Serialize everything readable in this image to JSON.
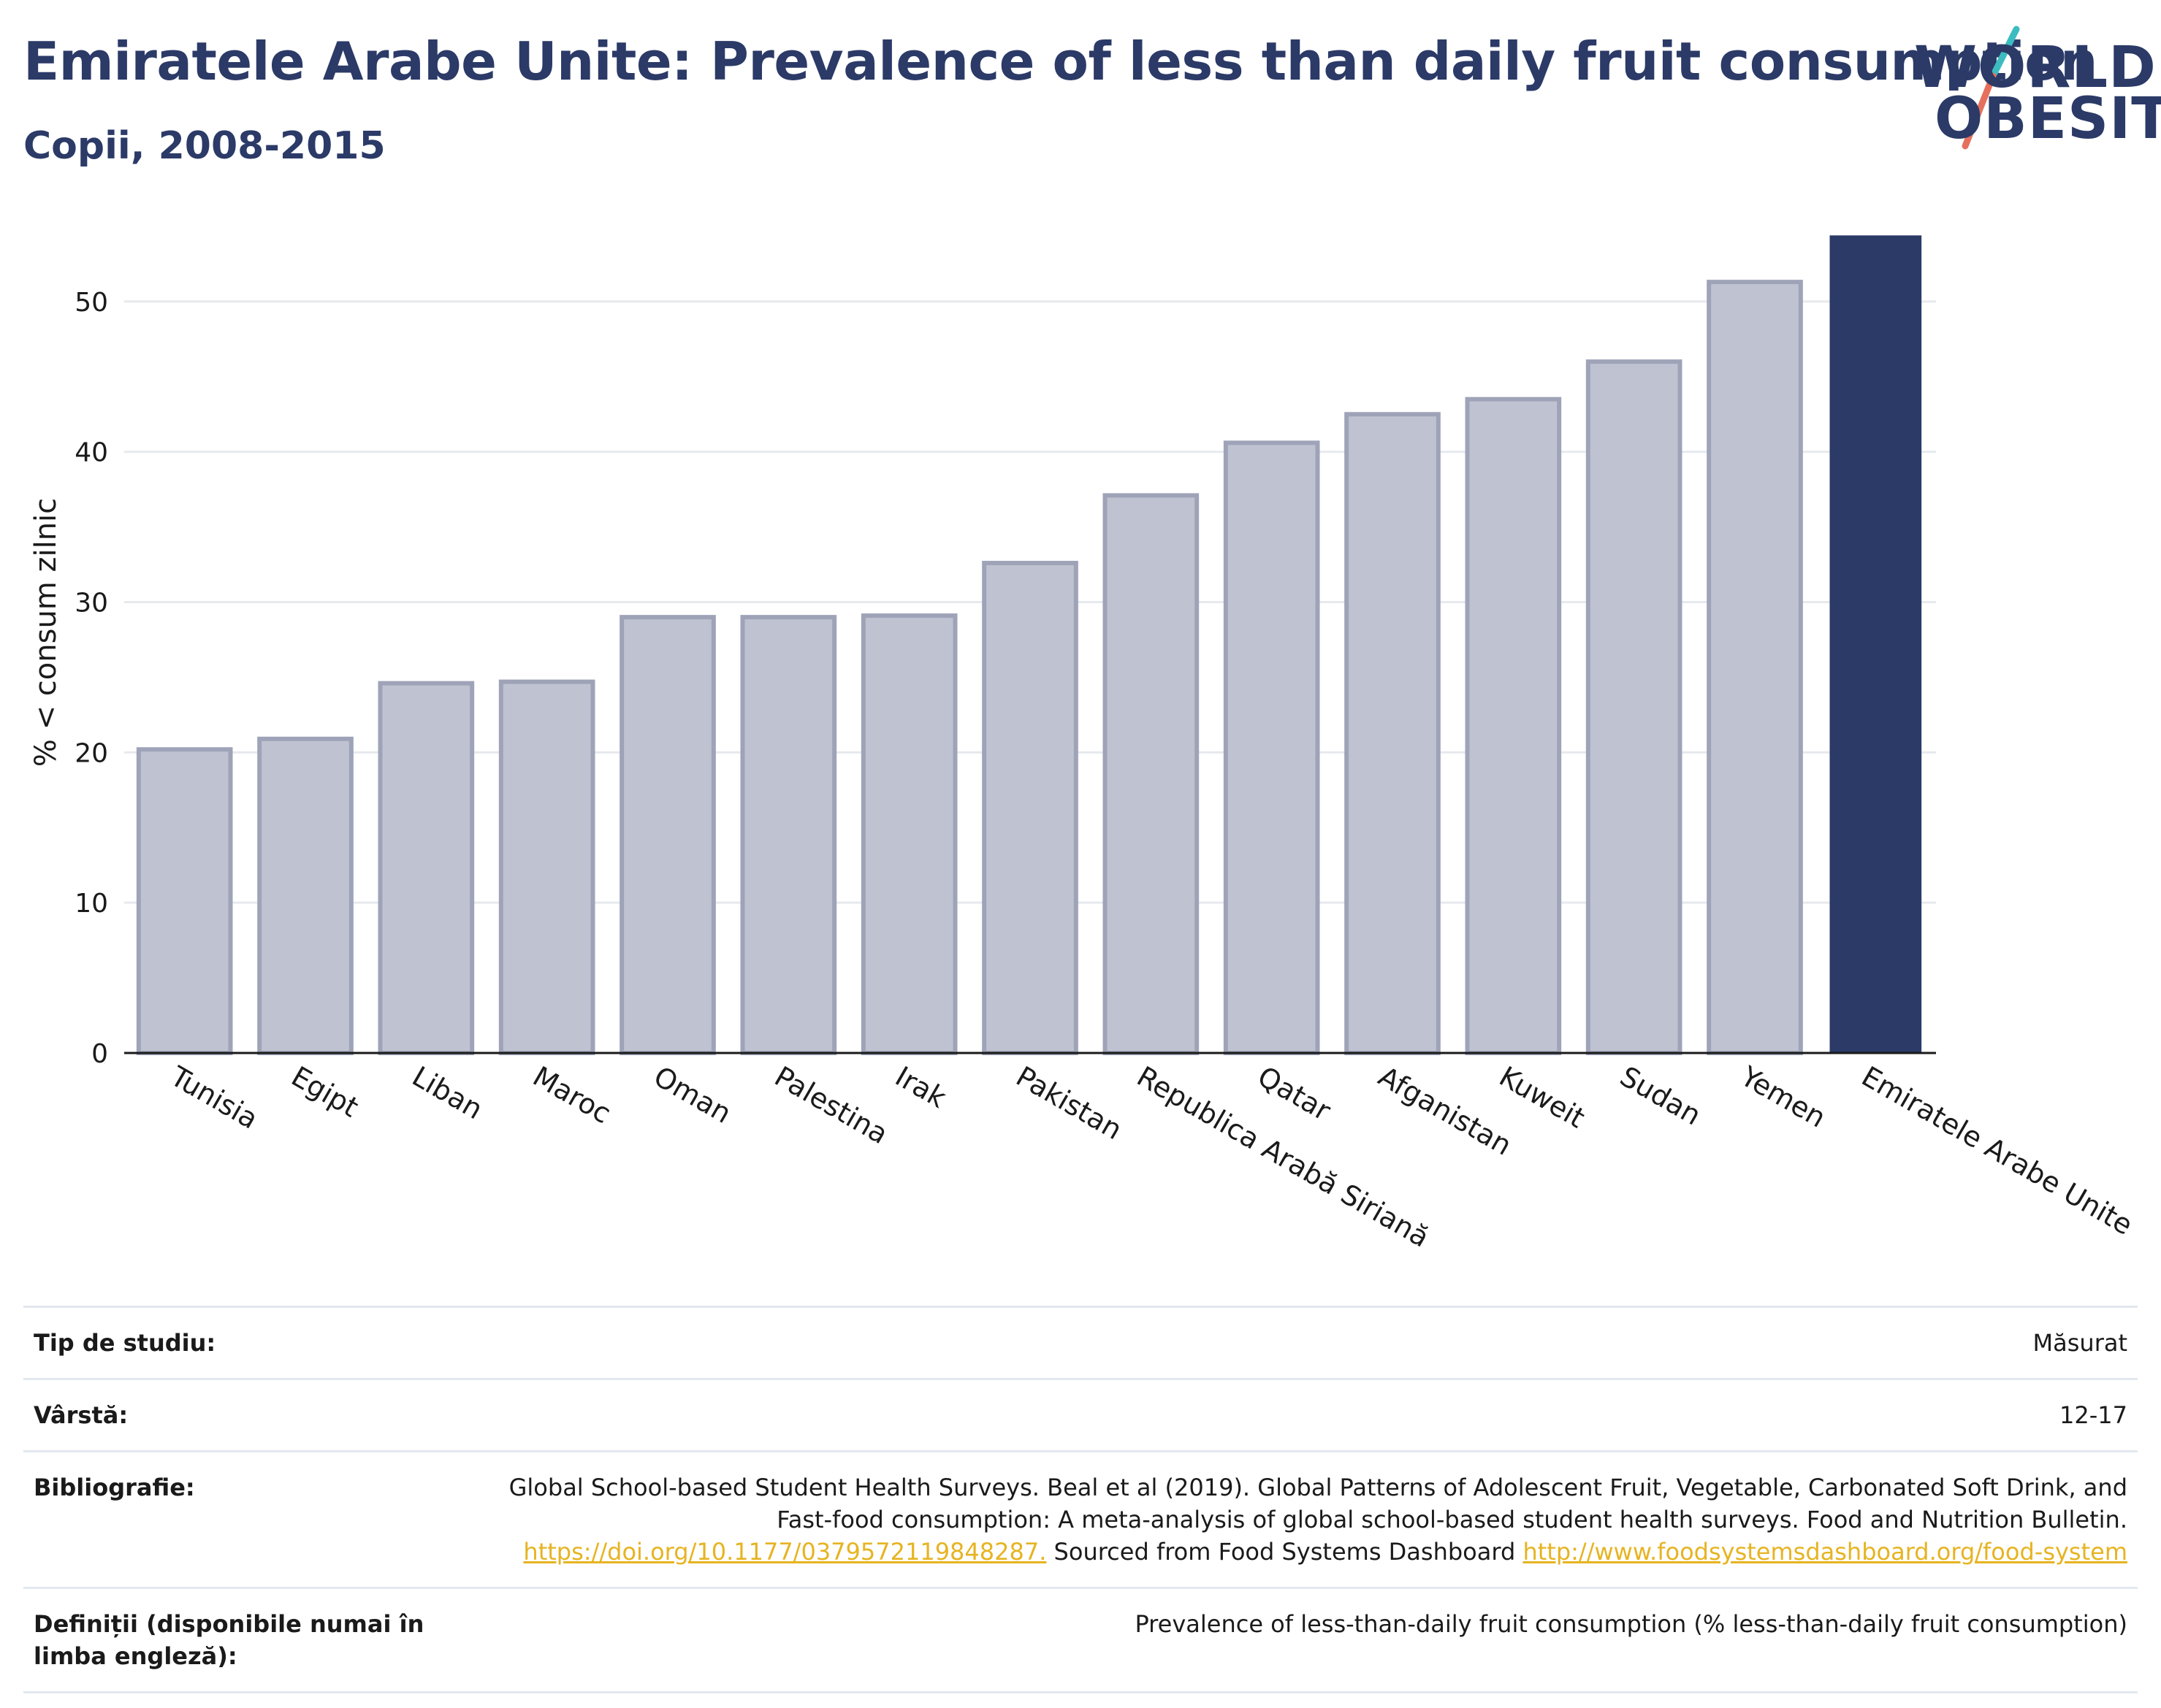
{
  "header": {
    "title": "Emiratele Arabe Unite: Prevalence of less than daily fruit consumption",
    "subtitle": "Copii, 2008-2015"
  },
  "logo": {
    "line1": "WORLD",
    "line2": "OBESITY"
  },
  "colors": {
    "highlight": "#2b3a67",
    "bar_fill": "#bfc3d1",
    "bar_stroke": "#9ea3b8",
    "grid": "#e6e9ee",
    "link": "#e6b422"
  },
  "chart_data": {
    "type": "bar",
    "ylabel": "% < consum zilnic",
    "xlabel": "",
    "ylim": [
      0,
      55
    ],
    "yticks": [
      0,
      10,
      20,
      30,
      40,
      50
    ],
    "grid": true,
    "categories": [
      "Tunisia",
      "Egipt",
      "Liban",
      "Maroc",
      "Oman",
      "Palestina",
      "Irak",
      "Pakistan",
      "Republica Arabă Siriană",
      "Qatar",
      "Afganistan",
      "Kuweit",
      "Sudan",
      "Yemen",
      "Emiratele Arabe Unite"
    ],
    "values": [
      20.2,
      20.9,
      24.6,
      24.7,
      29.0,
      29.0,
      29.1,
      32.6,
      37.1,
      40.6,
      42.5,
      43.5,
      46.0,
      51.3,
      54.4
    ],
    "highlight": "Emiratele Arabe Unite"
  },
  "meta": {
    "study_type_label": "Tip de studiu:",
    "study_type_value": "Măsurat",
    "age_label": "Vârstă:",
    "age_value": "12-17",
    "bibliography_label": "Bibliografie:",
    "bibliography_text1": "Global School-based Student Health Surveys. Beal et al (2019). Global Patterns of Adolescent Fruit, Vegetable, Carbonated Soft Drink, and Fast-food consumption: A meta-analysis of global school-based student health surveys. Food and Nutrition Bulletin.",
    "bibliography_link1": "https://doi.org/10.1177/0379572119848287.",
    "bibliography_text2": "Sourced from Food Systems Dashboard",
    "bibliography_link2": "http://www.foodsystemsdashboard.org/food-system",
    "definitions_label": "Definiții (disponibile numai în limba engleză):",
    "definitions_value": "Prevalence of less-than-daily fruit consumption (% less-than-daily fruit consumption)"
  }
}
